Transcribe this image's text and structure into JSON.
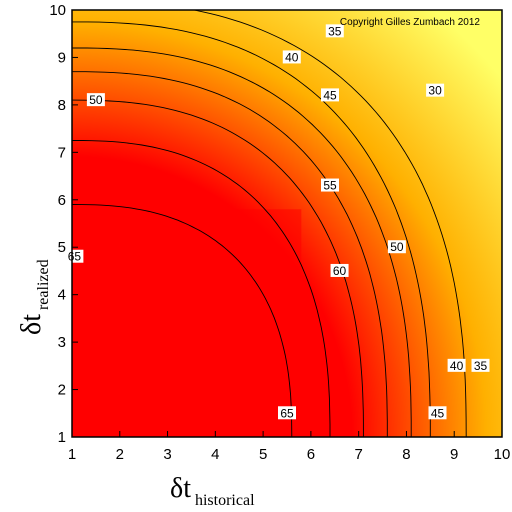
{
  "chart_data": {
    "type": "heatmap",
    "subtype": "contour",
    "title": "",
    "copyright": "Copyright Gilles Zumbach 2012",
    "xlabel": {
      "symbol": "δt",
      "subscript": "historical"
    },
    "ylabel": {
      "symbol": "δt",
      "subscript": "realized"
    },
    "xlim": [
      1,
      10
    ],
    "ylim": [
      1,
      10
    ],
    "xticks": [
      "1",
      "2",
      "3",
      "4",
      "5",
      "6",
      "7",
      "8",
      "9",
      "10"
    ],
    "yticks": [
      "1",
      "2",
      "3",
      "4",
      "5",
      "6",
      "7",
      "8",
      "9",
      "10"
    ],
    "grid": false,
    "colorscale": {
      "low": "#ffff66",
      "mid": "#ffb000",
      "high": "#ff0000"
    },
    "levels": [
      {
        "value": 30,
        "label": "30",
        "ellipse": {
          "a": 8.25,
          "b": 9.2,
          "p": 2.5
        }
      },
      {
        "value": 35,
        "label": "35",
        "ellipse": {
          "a": 7.5,
          "b": 8.75,
          "p": 2.5
        }
      },
      {
        "value": 40,
        "label": "40",
        "ellipse": {
          "a": 7.1,
          "b": 8.2,
          "p": 2.5
        }
      },
      {
        "value": 45,
        "label": "45",
        "ellipse": {
          "a": 6.6,
          "b": 7.7,
          "p": 2.5
        }
      },
      {
        "value": 50,
        "label": "50",
        "ellipse": {
          "a": 6.1,
          "b": 7.1,
          "p": 2.5
        }
      },
      {
        "value": 55,
        "label": "55",
        "ellipse": {
          "a": 5.4,
          "b": 6.25,
          "p": 2.5
        }
      },
      {
        "value": 60,
        "label": "60",
        "ellipse": {
          "a": 4.6,
          "b": 4.9,
          "p": 2.5
        }
      },
      {
        "value": 65,
        "label": "65",
        "ellipse": {
          "a": 0,
          "b": 0,
          "p": 2.5
        }
      }
    ],
    "labels": [
      {
        "text": "35",
        "x": 6.5,
        "y": 9.55
      },
      {
        "text": "30",
        "x": 8.6,
        "y": 8.3
      },
      {
        "text": "40",
        "x": 5.6,
        "y": 9.0
      },
      {
        "text": "45",
        "x": 6.4,
        "y": 8.2
      },
      {
        "text": "50",
        "x": 1.5,
        "y": 8.1
      },
      {
        "text": "55",
        "x": 6.4,
        "y": 6.3
      },
      {
        "text": "50",
        "x": 7.8,
        "y": 5.0
      },
      {
        "text": "60",
        "x": 6.6,
        "y": 4.5
      },
      {
        "text": "65",
        "x": 1.05,
        "y": 4.8
      },
      {
        "text": "65",
        "x": 5.5,
        "y": 1.5
      },
      {
        "text": "40",
        "x": 9.05,
        "y": 2.5
      },
      {
        "text": "35",
        "x": 9.55,
        "y": 2.5
      },
      {
        "text": "45",
        "x": 8.65,
        "y": 1.5
      }
    ],
    "peak_region": {
      "x_max": 5.8,
      "y_max": 5.8
    }
  }
}
